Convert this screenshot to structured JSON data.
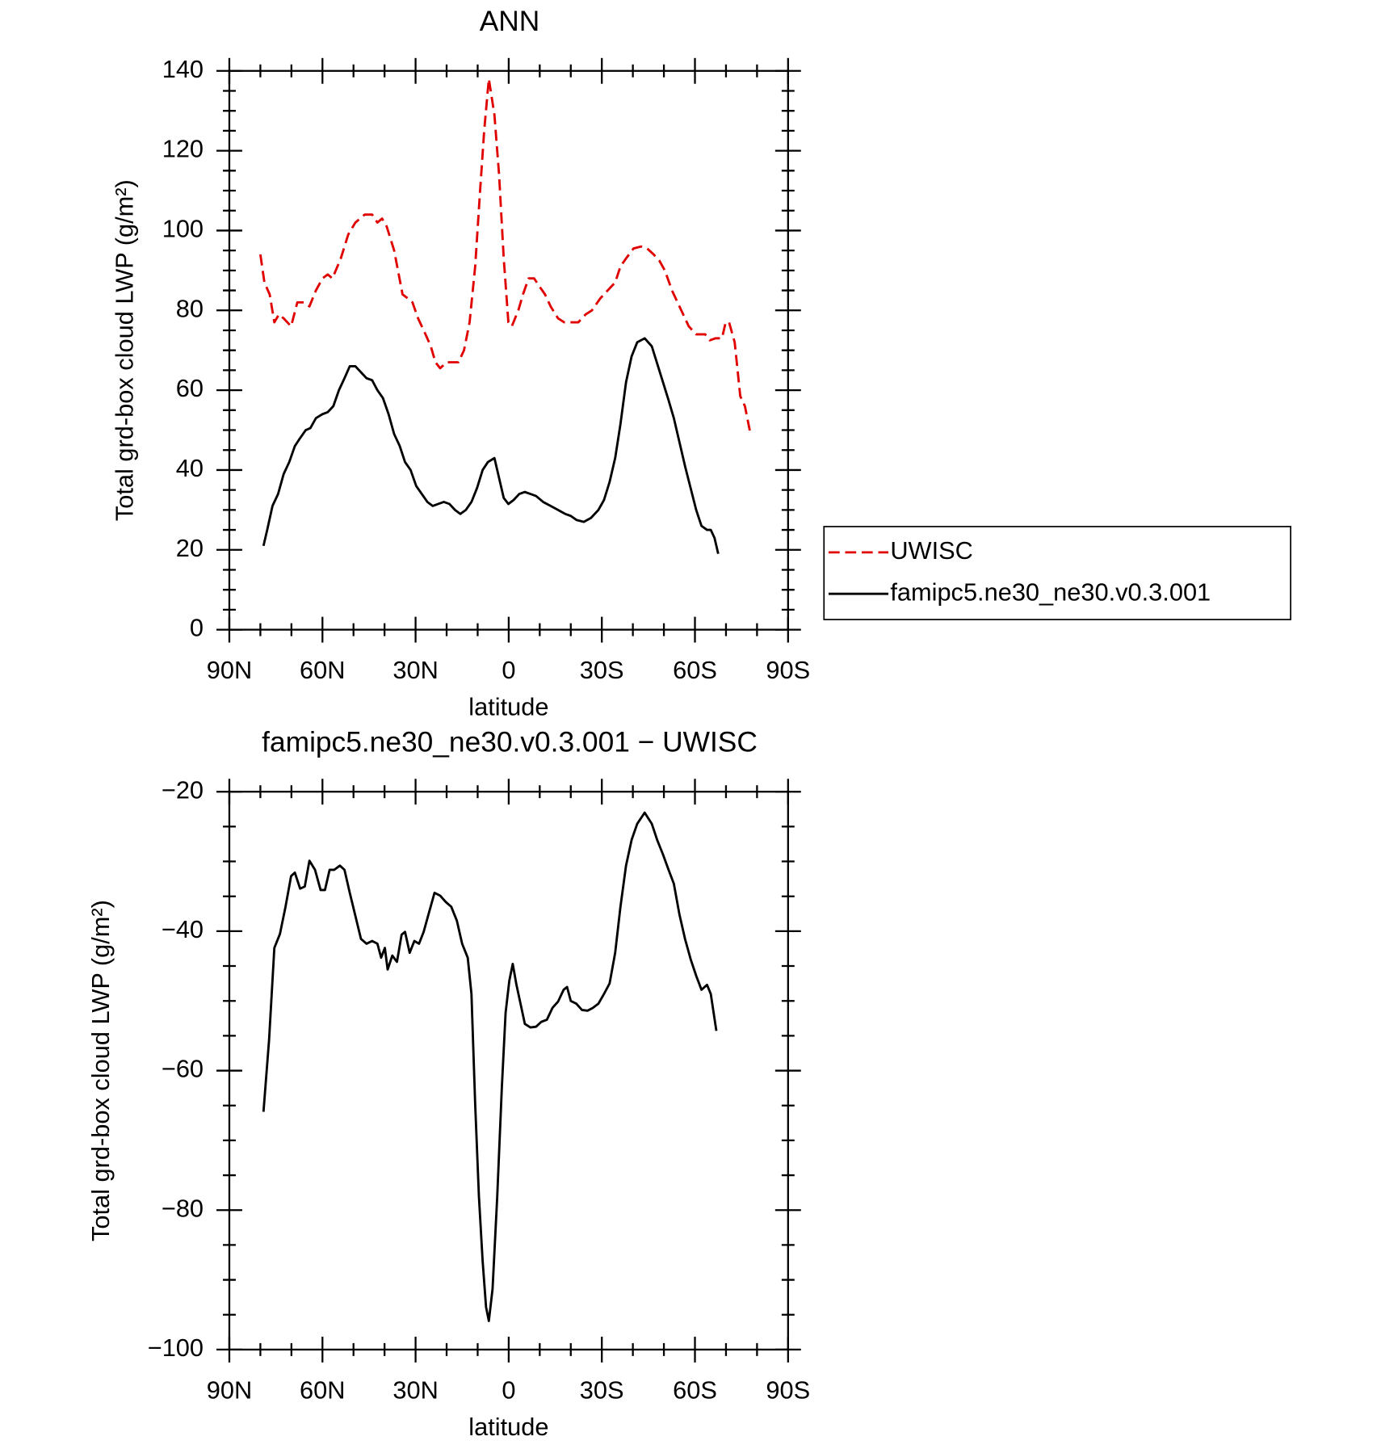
{
  "chart_data": [
    {
      "type": "line",
      "title": "ANN",
      "xlabel": "latitude",
      "ylabel": "Total grd-box cloud LWP (g/m²)",
      "xlim": [
        90,
        -90
      ],
      "xticks": [
        {
          "value": 90,
          "label": "90N"
        },
        {
          "value": 60,
          "label": "60N"
        },
        {
          "value": 30,
          "label": "30N"
        },
        0,
        {
          "value": -30,
          "label": "30S"
        },
        {
          "value": -60,
          "label": "60S"
        },
        {
          "value": -90,
          "label": "90S"
        }
      ],
      "ylim": [
        0,
        140
      ],
      "yticks": [
        0,
        20,
        40,
        60,
        80,
        100,
        120,
        140
      ],
      "legend": "right",
      "series": [
        {
          "name": "UWISC",
          "color": "#e00000",
          "linestyle": "dashed",
          "x": [
            80,
            78.7,
            77.0,
            75.5,
            74.0,
            72.5,
            70.1,
            68.1,
            66.0,
            64.2,
            62.1,
            60.0,
            58.3,
            56.8,
            54.1,
            51.7,
            49.4,
            46.4,
            44.0,
            42.3,
            40.8,
            39.3,
            36.9,
            34.2,
            32.5,
            31.0,
            29.2,
            26.8,
            25.1,
            23.6,
            22.1,
            20.0,
            17.9,
            16.2,
            14.4,
            12.6,
            10.8,
            9.3,
            7.9,
            6.4,
            4.6,
            3.1,
            1.6,
            0.1,
            -1.0,
            -3.1,
            -4.6,
            -6.4,
            -8.2,
            -9.9,
            -11.7,
            -13.5,
            -15.9,
            -17.9,
            -20.0,
            -22.4,
            -24.8,
            -26.8,
            -29.5,
            -31.9,
            -34.3,
            -36.0,
            -37.8,
            -40.2,
            -42.6,
            -44.6,
            -46.7,
            -48.5,
            -50.3,
            -52.6,
            -55.6,
            -58.0,
            -60.4,
            -63.3,
            -64.8,
            -66.6,
            -68.7,
            -69.9,
            -71.0,
            -72.8,
            -74.6,
            -76.1,
            -77.9
          ],
          "values": [
            94,
            87,
            84,
            77,
            79,
            78,
            76,
            82,
            82,
            81,
            85,
            88,
            89,
            88,
            93,
            99,
            102,
            104,
            104,
            102,
            103,
            101,
            95,
            84,
            83,
            82,
            78,
            74,
            71,
            67,
            65.5,
            67,
            67,
            67,
            70,
            77,
            91,
            109,
            125,
            138,
            129,
            114,
            93,
            77,
            76,
            80,
            84,
            88,
            88,
            86,
            84,
            81,
            78,
            77,
            77,
            77,
            79,
            80,
            83,
            85,
            87,
            91,
            93,
            95.5,
            96,
            95.5,
            94,
            92.5,
            90,
            85,
            80,
            76,
            74,
            74,
            72.5,
            73,
            73,
            77,
            77,
            72,
            58.5,
            56,
            49
          ]
        },
        {
          "name": "famipc5.ne30_ne30.v0.3.001",
          "color": "#000000",
          "linestyle": "solid",
          "x": [
            79.0,
            77.8,
            76.1,
            74.3,
            72.5,
            70.7,
            68.9,
            67.2,
            65.4,
            63.9,
            62.1,
            60.0,
            58.3,
            56.5,
            54.7,
            52.9,
            51.2,
            49.4,
            47.6,
            45.8,
            44.0,
            42.3,
            40.5,
            38.7,
            36.9,
            35.1,
            33.4,
            31.6,
            29.8,
            28.0,
            26.2,
            24.5,
            22.7,
            20.9,
            19.1,
            17.3,
            15.6,
            13.8,
            12.0,
            10.2,
            8.4,
            6.7,
            4.6,
            3.1,
            1.6,
            0.1,
            -1.6,
            -3.4,
            -5.2,
            -7.0,
            -8.8,
            -11.1,
            -13.5,
            -15.9,
            -18.2,
            -20.0,
            -21.8,
            -24.2,
            -26.5,
            -28.9,
            -30.7,
            -32.5,
            -34.3,
            -36.0,
            -37.8,
            -39.6,
            -41.4,
            -43.8,
            -46.1,
            -47.9,
            -49.7,
            -51.5,
            -53.2,
            -55.0,
            -56.8,
            -58.6,
            -60.4,
            -62.1,
            -63.9,
            -65.1,
            -66.3,
            -67.5
          ],
          "values": [
            21,
            25,
            31,
            34,
            39,
            42,
            46,
            48,
            50,
            50.5,
            53,
            54,
            54.5,
            56,
            60,
            63,
            66,
            66,
            64.5,
            63,
            62.5,
            60,
            58,
            54,
            49,
            46,
            42,
            40,
            36,
            34,
            32,
            31,
            31.5,
            32,
            31.5,
            30,
            29,
            30,
            32,
            35.5,
            40,
            42,
            43,
            38,
            33,
            31.5,
            32.5,
            34,
            34.5,
            34,
            33.5,
            32,
            31,
            30,
            29,
            28.5,
            27.5,
            27,
            28,
            30,
            32.5,
            37,
            43,
            51.5,
            62,
            68.5,
            72,
            73,
            71,
            66.5,
            62,
            57.5,
            53,
            47,
            41,
            35.5,
            30,
            26,
            25,
            25,
            23,
            19
          ]
        }
      ]
    },
    {
      "type": "line",
      "title": "famipc5.ne30_ne30.v0.3.001 − UWISC",
      "xlabel": "latitude",
      "ylabel": "Total grd-box cloud LWP (g/m²)",
      "xlim": [
        90,
        -90
      ],
      "xticks": [
        {
          "value": 90,
          "label": "90N"
        },
        {
          "value": 60,
          "label": "60N"
        },
        {
          "value": 30,
          "label": "30N"
        },
        0,
        {
          "value": -30,
          "label": "30S"
        },
        {
          "value": -60,
          "label": "60S"
        },
        {
          "value": -90,
          "label": "90S"
        }
      ],
      "ylim": [
        -100,
        -20
      ],
      "yticks": [
        {
          "value": -100,
          "label": "−100"
        },
        {
          "value": -80,
          "label": "−80"
        },
        {
          "value": -60,
          "label": "−60"
        },
        {
          "value": -40,
          "label": "−40"
        },
        {
          "value": -20,
          "label": "−20"
        }
      ],
      "series": [
        {
          "color": "#000000",
          "linestyle": "solid",
          "x": [
            79.0,
            77.2,
            75.5,
            73.7,
            71.9,
            70.1,
            68.9,
            67.2,
            65.7,
            64.2,
            62.4,
            60.6,
            59.2,
            57.7,
            56.2,
            54.4,
            52.9,
            51.2,
            49.4,
            47.6,
            45.8,
            44.0,
            42.3,
            41.1,
            39.9,
            39.0,
            37.5,
            36.0,
            34.5,
            33.4,
            31.9,
            30.4,
            28.9,
            27.4,
            25.6,
            23.9,
            22.1,
            20.3,
            18.5,
            16.7,
            15.0,
            13.2,
            12.0,
            10.8,
            9.6,
            8.4,
            7.3,
            6.4,
            5.2,
            3.7,
            2.2,
            1.0,
            -0.2,
            -1.3,
            -2.5,
            -4.0,
            -5.2,
            -7.0,
            -8.8,
            -10.5,
            -12.3,
            -14.1,
            -15.9,
            -17.7,
            -18.8,
            -20.0,
            -21.8,
            -23.6,
            -25.4,
            -27.1,
            -28.9,
            -30.7,
            -32.5,
            -34.3,
            -36.0,
            -37.8,
            -39.6,
            -41.4,
            -43.8,
            -46.1,
            -47.9,
            -49.7,
            -51.5,
            -53.2,
            -55.0,
            -56.8,
            -58.6,
            -60.4,
            -62.1,
            -63.9,
            -65.1,
            -66.9
          ],
          "values": [
            -65.9,
            -55.6,
            -42.4,
            -40.4,
            -36.5,
            -32.1,
            -31.6,
            -33.9,
            -33.6,
            -29.9,
            -31.2,
            -34.1,
            -34.1,
            -31.2,
            -31.2,
            -30.6,
            -31.2,
            -34.5,
            -37.8,
            -41.1,
            -41.8,
            -41.4,
            -41.8,
            -43.8,
            -42.4,
            -45.5,
            -43.5,
            -44.4,
            -40.5,
            -40.1,
            -43.1,
            -41.4,
            -41.8,
            -40.1,
            -37.2,
            -34.5,
            -34.9,
            -35.8,
            -36.5,
            -38.5,
            -41.8,
            -43.8,
            -49.0,
            -64.8,
            -78.0,
            -87.3,
            -93.9,
            -95.9,
            -91.3,
            -78.1,
            -62.3,
            -51.7,
            -47.1,
            -44.7,
            -47.7,
            -50.8,
            -53.3,
            -53.8,
            -53.7,
            -53.0,
            -52.7,
            -51.0,
            -50.1,
            -48.4,
            -48.0,
            -50.0,
            -50.4,
            -51.3,
            -51.4,
            -51.0,
            -50.4,
            -49.0,
            -47.5,
            -43.1,
            -36.5,
            -30.6,
            -26.9,
            -24.6,
            -23.0,
            -24.6,
            -27.0,
            -29.0,
            -31.2,
            -33.2,
            -37.6,
            -41.1,
            -44.0,
            -46.4,
            -48.4,
            -47.7,
            -49.0,
            -54.3
          ]
        }
      ]
    }
  ]
}
